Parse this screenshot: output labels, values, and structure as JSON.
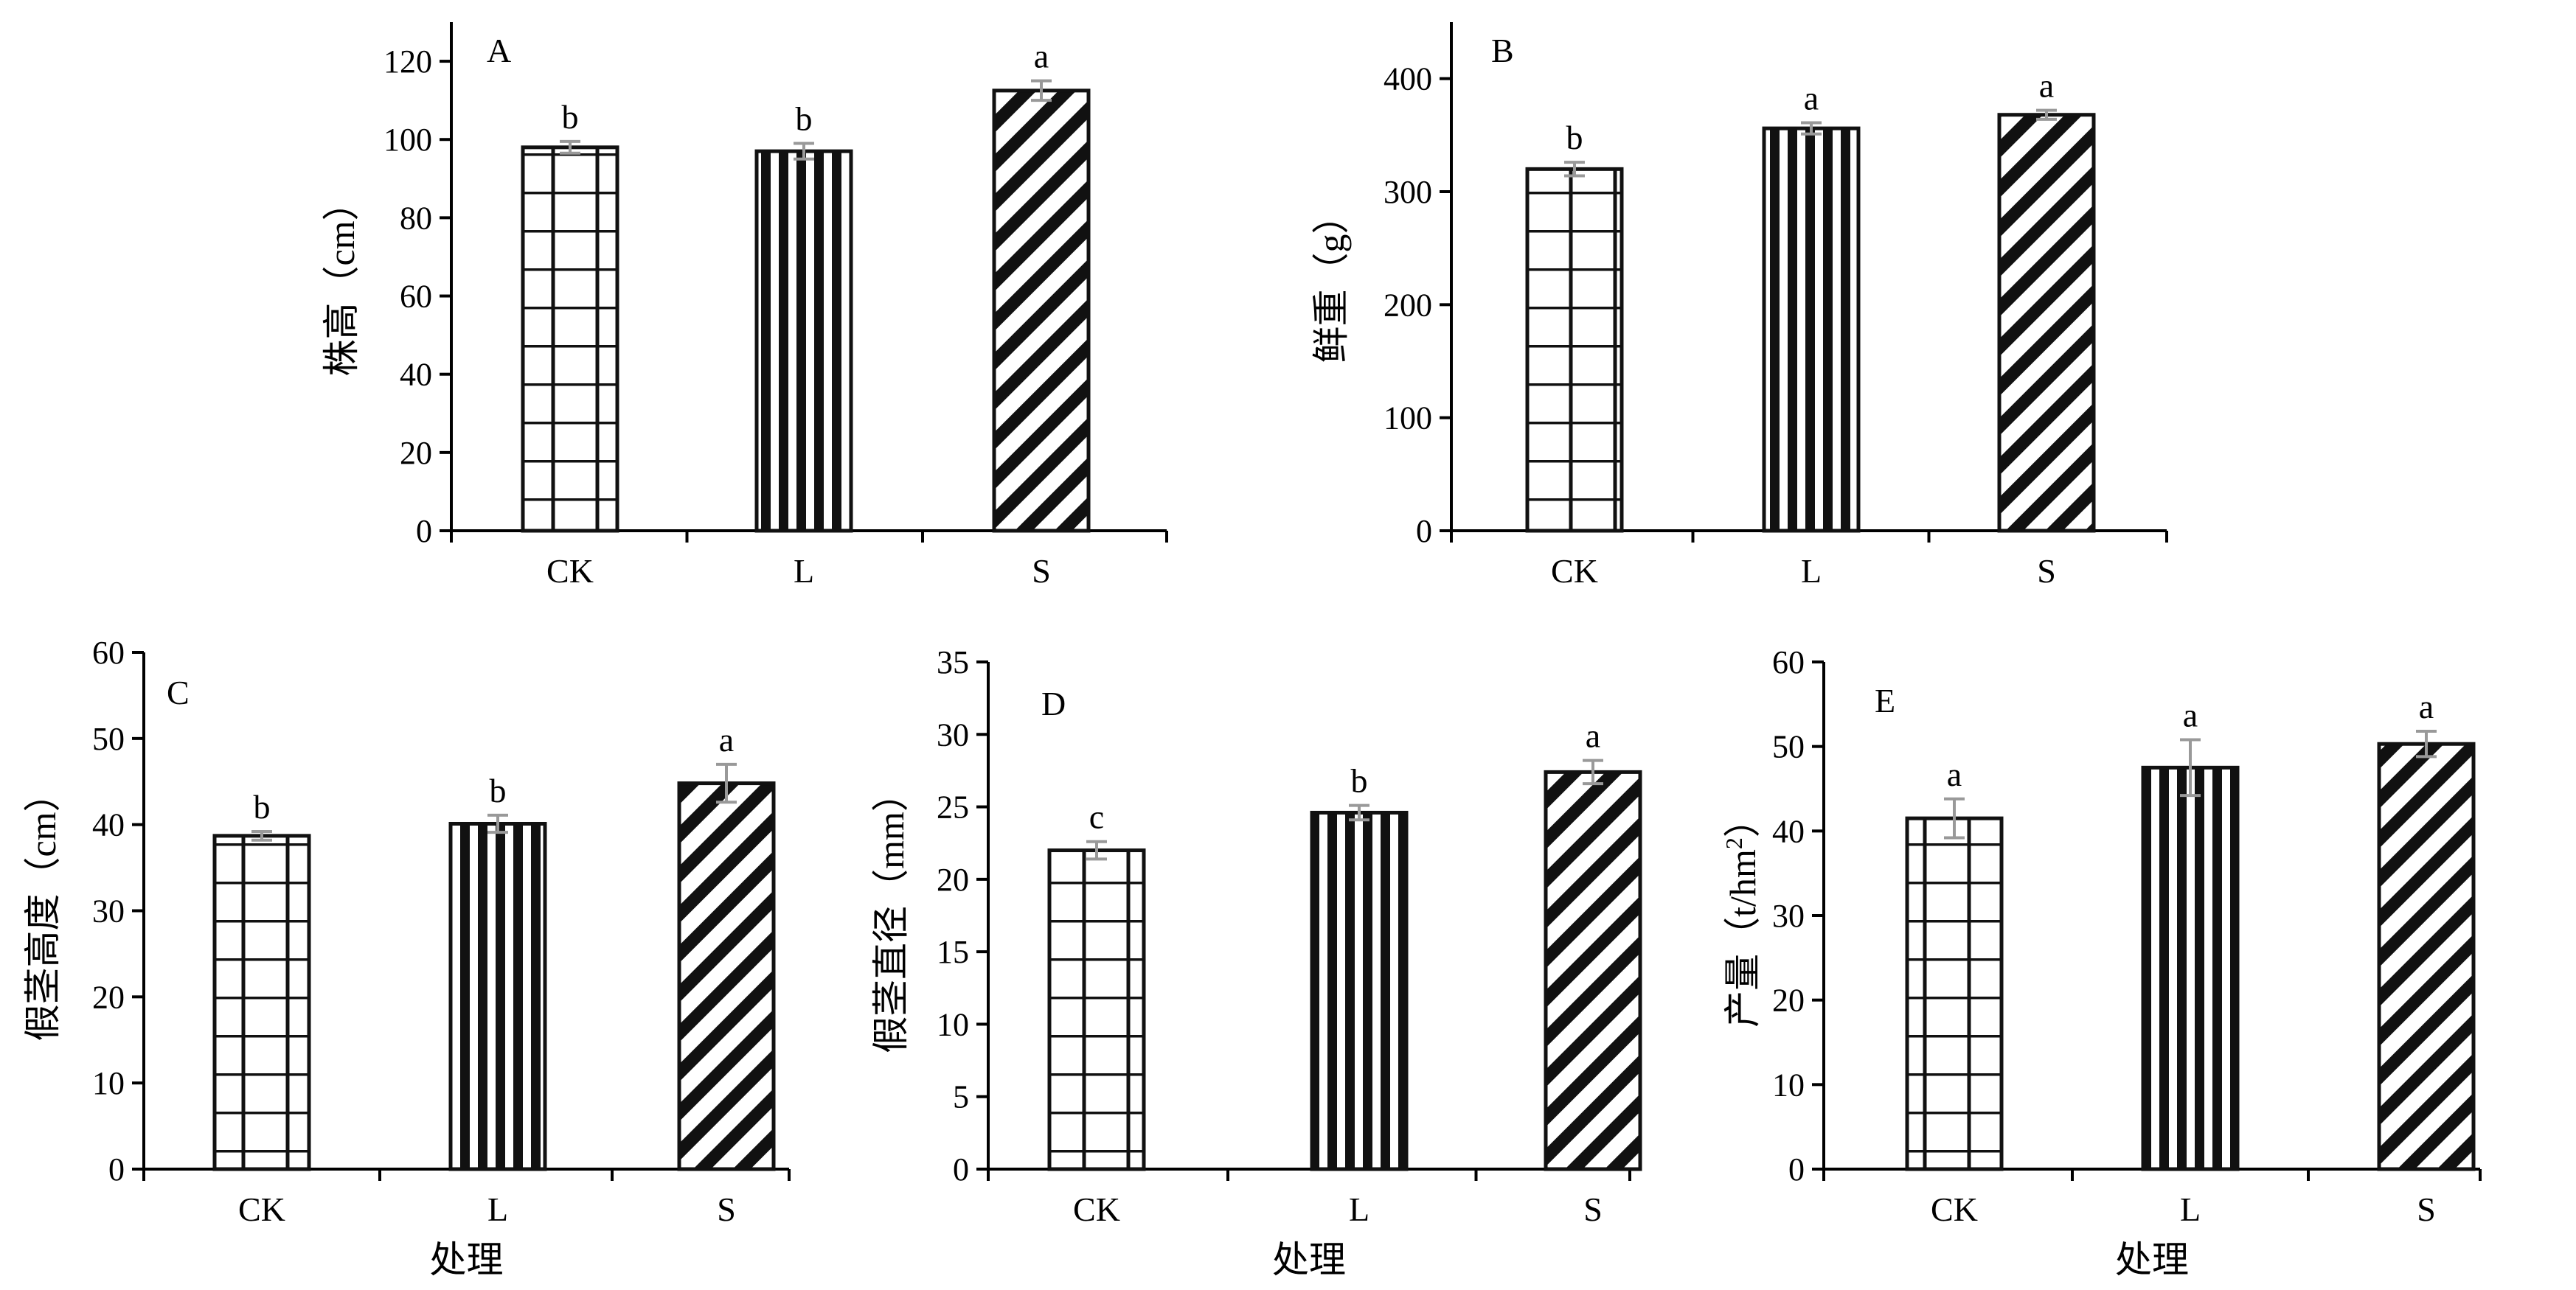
{
  "pattern_colors": {
    "ink": "#111111",
    "error_bar": "#999999"
  },
  "chart_data": [
    {
      "panel": "A",
      "type": "bar",
      "categories": [
        "CK",
        "L",
        "S"
      ],
      "values": [
        98,
        97,
        112.5
      ],
      "errors": [
        1.5,
        2,
        2.5
      ],
      "significance": [
        "b",
        "b",
        "a"
      ],
      "patterns": [
        "grid",
        "vertical",
        "diagonal"
      ],
      "ylabel": "株高（cm）",
      "xlabel": "",
      "ylim": [
        0,
        130
      ],
      "yticks": [
        0,
        20,
        40,
        60,
        80,
        100,
        120
      ]
    },
    {
      "panel": "B",
      "type": "bar",
      "categories": [
        "CK",
        "L",
        "S"
      ],
      "values": [
        320,
        356,
        368
      ],
      "errors": [
        6,
        5,
        4
      ],
      "significance": [
        "b",
        "a",
        "a"
      ],
      "patterns": [
        "grid",
        "vertical",
        "diagonal"
      ],
      "ylabel": "鲜重（g）",
      "xlabel": "",
      "ylim": [
        0,
        450
      ],
      "yticks": [
        0,
        100,
        200,
        300,
        400
      ]
    },
    {
      "panel": "C",
      "type": "bar",
      "categories": [
        "CK",
        "L",
        "S"
      ],
      "values": [
        38.7,
        40.1,
        44.8
      ],
      "errors": [
        0.5,
        1,
        2.2
      ],
      "significance": [
        "b",
        "b",
        "a"
      ],
      "patterns": [
        "grid",
        "vertical",
        "diagonal"
      ],
      "ylabel": "假茎高度（cm）",
      "xlabel": "处理",
      "ylim": [
        0,
        60
      ],
      "yticks": [
        0,
        10,
        20,
        30,
        40,
        50,
        60
      ]
    },
    {
      "panel": "D",
      "type": "bar",
      "categories": [
        "CK",
        "L",
        "S"
      ],
      "values": [
        22,
        24.6,
        27.4
      ],
      "errors": [
        0.6,
        0.5,
        0.8
      ],
      "significance": [
        "c",
        "b",
        "a"
      ],
      "patterns": [
        "grid",
        "vertical",
        "diagonal"
      ],
      "ylabel": "假茎直径（mm）",
      "xlabel": "处理",
      "ylim": [
        0,
        35
      ],
      "yticks": [
        0,
        5,
        10,
        15,
        20,
        25,
        30,
        35
      ]
    },
    {
      "panel": "E",
      "type": "bar",
      "categories": [
        "CK",
        "L",
        "S"
      ],
      "values": [
        41.5,
        47.5,
        50.3
      ],
      "errors": [
        2.3,
        3.3,
        1.5
      ],
      "significance": [
        "a",
        "a",
        "a"
      ],
      "patterns": [
        "grid",
        "vertical",
        "diagonal"
      ],
      "ylabel_prefix": "产量（t/hm",
      "ylabel_sup": "2",
      "ylabel_suffix": "）",
      "xlabel": "处理",
      "ylim": [
        0,
        60
      ],
      "yticks": [
        0,
        10,
        20,
        30,
        40,
        50,
        60
      ]
    }
  ]
}
